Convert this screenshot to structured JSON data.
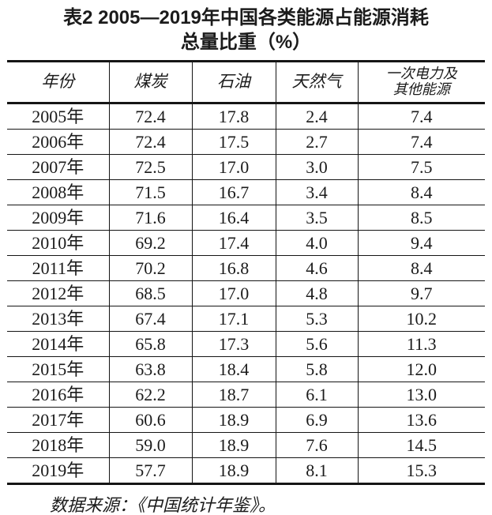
{
  "chart_data": {
    "type": "table",
    "title": "表2 2005—2019年中国各类能源占能源消耗总量比重（%）",
    "title_lines": [
      "表2 2005—2019年中国各类能源占能源消耗",
      "总量比重（%）"
    ],
    "columns": [
      "年份",
      "煤炭",
      "石油",
      "天然气",
      "一次电力及其他能源"
    ],
    "header_lines": [
      [
        "年份"
      ],
      [
        "煤炭"
      ],
      [
        "石油"
      ],
      [
        "天然气"
      ],
      [
        "一次电力及",
        "其他能源"
      ]
    ],
    "unit": "%",
    "rows": [
      [
        "2005年",
        "72.4",
        "17.8",
        "2.4",
        "7.4"
      ],
      [
        "2006年",
        "72.4",
        "17.5",
        "2.7",
        "7.4"
      ],
      [
        "2007年",
        "72.5",
        "17.0",
        "3.0",
        "7.5"
      ],
      [
        "2008年",
        "71.5",
        "16.7",
        "3.4",
        "8.4"
      ],
      [
        "2009年",
        "71.6",
        "16.4",
        "3.5",
        "8.5"
      ],
      [
        "2010年",
        "69.2",
        "17.4",
        "4.0",
        "9.4"
      ],
      [
        "2011年",
        "70.2",
        "16.8",
        "4.6",
        "8.4"
      ],
      [
        "2012年",
        "68.5",
        "17.0",
        "4.8",
        "9.7"
      ],
      [
        "2013年",
        "67.4",
        "17.1",
        "5.3",
        "10.2"
      ],
      [
        "2014年",
        "65.8",
        "17.3",
        "5.6",
        "11.3"
      ],
      [
        "2015年",
        "63.8",
        "18.4",
        "5.8",
        "12.0"
      ],
      [
        "2016年",
        "62.2",
        "18.7",
        "6.1",
        "13.0"
      ],
      [
        "2017年",
        "60.6",
        "18.9",
        "6.9",
        "13.6"
      ],
      [
        "2018年",
        "59.0",
        "18.9",
        "7.6",
        "14.5"
      ],
      [
        "2019年",
        "57.7",
        "18.9",
        "8.1",
        "15.3"
      ]
    ],
    "source_note": "数据来源：《中国统计年鉴》。",
    "text_color": "#1b1b1b",
    "border_color": "#151515",
    "background_color": "#ffffff"
  }
}
